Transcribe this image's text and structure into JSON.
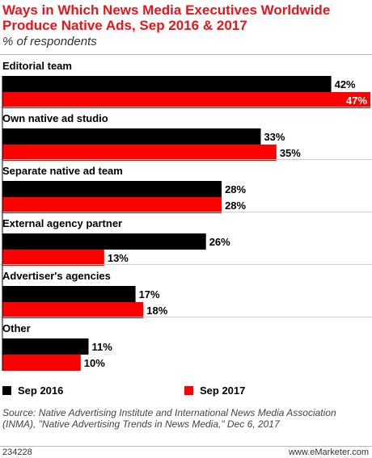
{
  "header": {
    "title": "Ways in Which News Media Executives Worldwide Produce Native Ads, Sep 2016 & 2017",
    "subtitle": "% of respondents"
  },
  "chart_data": {
    "type": "bar",
    "orientation": "horizontal",
    "categories": [
      "Editorial team",
      "Own native ad studio",
      "Separate native ad team",
      "External agency partner",
      "Advertiser's agencies",
      "Other"
    ],
    "series": [
      {
        "name": "Sep 2016",
        "color": "#000000",
        "values": [
          42,
          33,
          28,
          26,
          17,
          11
        ],
        "labels": [
          "42%",
          "33%",
          "28%",
          "26%",
          "17%",
          "11%"
        ]
      },
      {
        "name": "Sep 2017",
        "color": "#ff0000",
        "values": [
          47,
          35,
          28,
          13,
          18,
          10
        ],
        "labels": [
          "47%",
          "35%",
          "28%",
          "13%",
          "18%",
          "10%"
        ]
      }
    ],
    "xlim": [
      0,
      47
    ],
    "legend_position": "bottom",
    "grid": false
  },
  "legend": {
    "sep2016": "Sep 2016",
    "sep2017": "Sep 2017",
    "sep2016_color": "#000000",
    "sep2017_color": "#ff0000"
  },
  "source": "Source: Native Advertising Institute and International News Media Association (INMA), \"Native Advertising Trends in News Media,\" Dec 6, 2017",
  "footer": {
    "id": "234228",
    "brand": "www.eMarketer.com"
  }
}
